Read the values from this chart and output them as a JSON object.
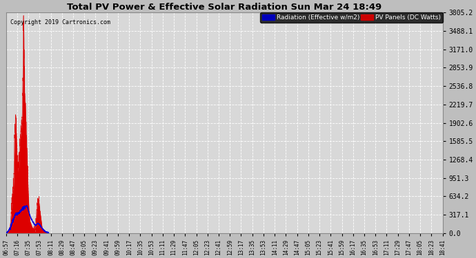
{
  "title": "Total PV Power & Effective Solar Radiation Sun Mar 24 18:49",
  "copyright": "Copyright 2019 Cartronics.com",
  "bg_color": "#bebebe",
  "plot_bg_color": "#d8d8d8",
  "grid_color": "#ffffff",
  "title_color": "black",
  "ylabel_right_values": [
    0.0,
    317.1,
    634.2,
    951.3,
    1268.4,
    1585.5,
    1902.6,
    2219.7,
    2536.8,
    2853.9,
    3171.0,
    3488.1,
    3805.2
  ],
  "ylim": [
    0,
    3805.2
  ],
  "legend_radiation_label": "Radiation (Effective w/m2)",
  "legend_pv_label": "PV Panels (DC Watts)",
  "radiation_color": "#0000dd",
  "pv_color": "#dd0000",
  "x_tick_labels": [
    "06:57",
    "07:16",
    "07:35",
    "07:53",
    "08:11",
    "08:29",
    "08:47",
    "09:05",
    "09:23",
    "09:41",
    "09:59",
    "10:17",
    "10:35",
    "10:53",
    "11:11",
    "11:29",
    "11:47",
    "12:05",
    "12:23",
    "12:41",
    "12:59",
    "13:17",
    "13:35",
    "13:53",
    "14:11",
    "14:29",
    "14:47",
    "15:05",
    "15:23",
    "15:41",
    "15:59",
    "16:17",
    "16:35",
    "16:53",
    "17:11",
    "17:29",
    "17:47",
    "18:05",
    "18:23",
    "18:41"
  ]
}
